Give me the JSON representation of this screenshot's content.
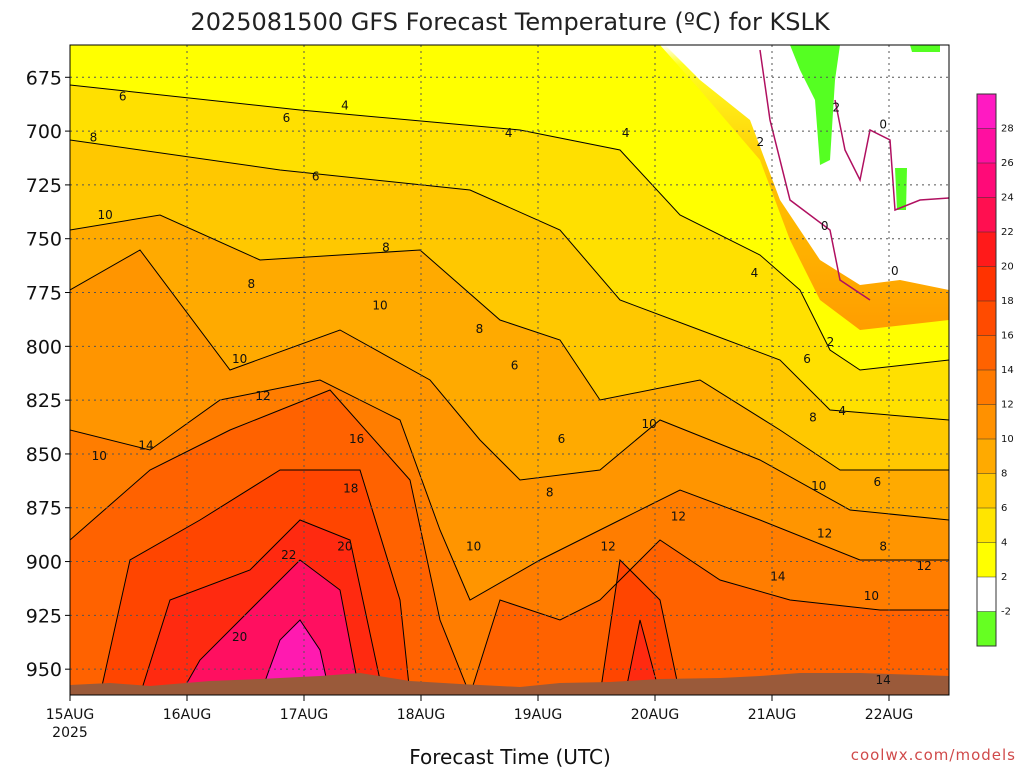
{
  "chart_data": {
    "type": "heatmap",
    "title": "2025081500 GFS Forecast Temperature (ºC) for KSLK",
    "xlabel": "Forecast Time (UTC)",
    "x_ticks": [
      "15AUG",
      "16AUG",
      "17AUG",
      "18AUG",
      "19AUG",
      "20AUG",
      "21AUG",
      "22AUG"
    ],
    "x_year": "2025",
    "y_ticks": [
      675,
      700,
      725,
      750,
      775,
      800,
      825,
      850,
      875,
      900,
      925,
      950
    ],
    "y_axis": "pressure (hPa), decreasing upward",
    "ylim": [
      962,
      660
    ],
    "xlim_days": [
      0,
      7.5
    ],
    "grid": true,
    "colorbar": {
      "levels": [
        "-2",
        "2",
        "4",
        "6",
        "8",
        "10",
        "12",
        "14",
        "16",
        "18",
        "20",
        "22",
        "24",
        "26",
        "28"
      ],
      "colors": [
        "#66ff22",
        "#ffffff",
        "#ffff00",
        "#ffe500",
        "#ffc800",
        "#ffaa00",
        "#ff9100",
        "#ff7a00",
        "#ff6200",
        "#ff4b00",
        "#ff3300",
        "#ff1a1a",
        "#ff0f50",
        "#ff0a78",
        "#ff0fa0",
        "#ff1ac2"
      ]
    },
    "contour_labels": [
      {
        "t": 0.45,
        "p": 684,
        "v": "6"
      },
      {
        "t": 0.2,
        "p": 703,
        "v": "8"
      },
      {
        "t": 0.3,
        "p": 739,
        "v": "10"
      },
      {
        "t": 1.85,
        "p": 694,
        "v": "6"
      },
      {
        "t": 2.35,
        "p": 688,
        "v": "4"
      },
      {
        "t": 2.1,
        "p": 721,
        "v": "6"
      },
      {
        "t": 1.55,
        "p": 771,
        "v": "8"
      },
      {
        "t": 2.7,
        "p": 754,
        "v": "8"
      },
      {
        "t": 2.65,
        "p": 781,
        "v": "10"
      },
      {
        "t": 1.45,
        "p": 806,
        "v": "10"
      },
      {
        "t": 1.65,
        "p": 823,
        "v": "12"
      },
      {
        "t": 0.65,
        "p": 846,
        "v": "14"
      },
      {
        "t": 0.25,
        "p": 851,
        "v": "10"
      },
      {
        "t": 2.45,
        "p": 843,
        "v": "16"
      },
      {
        "t": 2.4,
        "p": 866,
        "v": "18"
      },
      {
        "t": 2.35,
        "p": 893,
        "v": "20"
      },
      {
        "t": 1.87,
        "p": 897,
        "v": "22"
      },
      {
        "t": 1.45,
        "p": 935,
        "v": "20"
      },
      {
        "t": 3.75,
        "p": 701,
        "v": "4"
      },
      {
        "t": 4.75,
        "p": 701,
        "v": "4"
      },
      {
        "t": 3.5,
        "p": 792,
        "v": "8"
      },
      {
        "t": 3.8,
        "p": 809,
        "v": "6"
      },
      {
        "t": 4.2,
        "p": 843,
        "v": "6"
      },
      {
        "t": 4.1,
        "p": 868,
        "v": "8"
      },
      {
        "t": 3.45,
        "p": 893,
        "v": "10"
      },
      {
        "t": 4.6,
        "p": 893,
        "v": "12"
      },
      {
        "t": 4.95,
        "p": 836,
        "v": "10"
      },
      {
        "t": 5.2,
        "p": 879,
        "v": "12"
      },
      {
        "t": 5.9,
        "p": 705,
        "v": "2"
      },
      {
        "t": 5.85,
        "p": 766,
        "v": "4"
      },
      {
        "t": 6.55,
        "p": 689,
        "v": "2"
      },
      {
        "t": 6.95,
        "p": 697,
        "v": "0"
      },
      {
        "t": 6.45,
        "p": 744,
        "v": "0"
      },
      {
        "t": 7.05,
        "p": 765,
        "v": "0"
      },
      {
        "t": 6.5,
        "p": 798,
        "v": "2"
      },
      {
        "t": 6.6,
        "p": 830,
        "v": "4"
      },
      {
        "t": 6.3,
        "p": 806,
        "v": "6"
      },
      {
        "t": 6.35,
        "p": 833,
        "v": "8"
      },
      {
        "t": 6.4,
        "p": 865,
        "v": "10"
      },
      {
        "t": 6.45,
        "p": 887,
        "v": "12"
      },
      {
        "t": 6.9,
        "p": 863,
        "v": "6"
      },
      {
        "t": 6.95,
        "p": 893,
        "v": "8"
      },
      {
        "t": 6.85,
        "p": 916,
        "v": "10"
      },
      {
        "t": 7.3,
        "p": 902,
        "v": "12"
      },
      {
        "t": 6.05,
        "p": 907,
        "v": "14"
      },
      {
        "t": 6.95,
        "p": 955,
        "v": "14"
      }
    ]
  },
  "credit": "coolwx.com/models"
}
